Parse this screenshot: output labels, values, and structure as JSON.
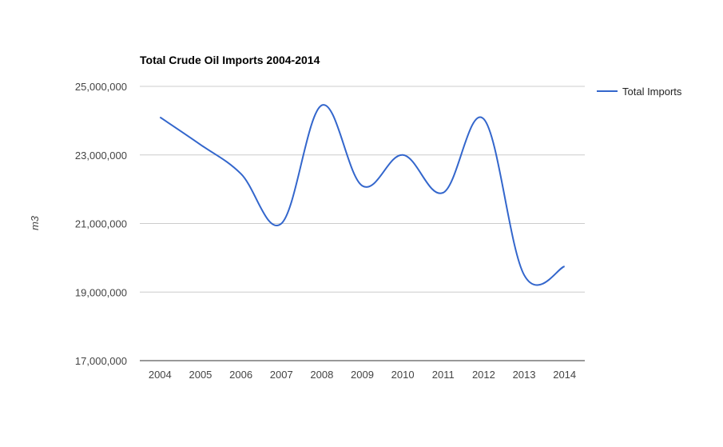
{
  "chart_data": {
    "type": "line",
    "title": "Total Crude Oil Imports 2004-2014",
    "xlabel": "",
    "ylabel": "m3",
    "x": [
      "2004",
      "2005",
      "2006",
      "2007",
      "2008",
      "2009",
      "2010",
      "2011",
      "2012",
      "2013",
      "2014"
    ],
    "series": [
      {
        "name": "Total Imports",
        "color": "#3366cc",
        "values": [
          24100000,
          23300000,
          22450000,
          21000000,
          24450000,
          22100000,
          23000000,
          21900000,
          24050000,
          19500000,
          19750000
        ]
      }
    ],
    "ylim": [
      17000000,
      25000000
    ],
    "yticks": [
      17000000,
      19000000,
      21000000,
      23000000,
      25000000
    ],
    "ytick_labels": [
      "17,000,000",
      "19,000,000",
      "21,000,000",
      "23,000,000",
      "25,000,000"
    ],
    "grid": true,
    "legend_position": "right"
  }
}
